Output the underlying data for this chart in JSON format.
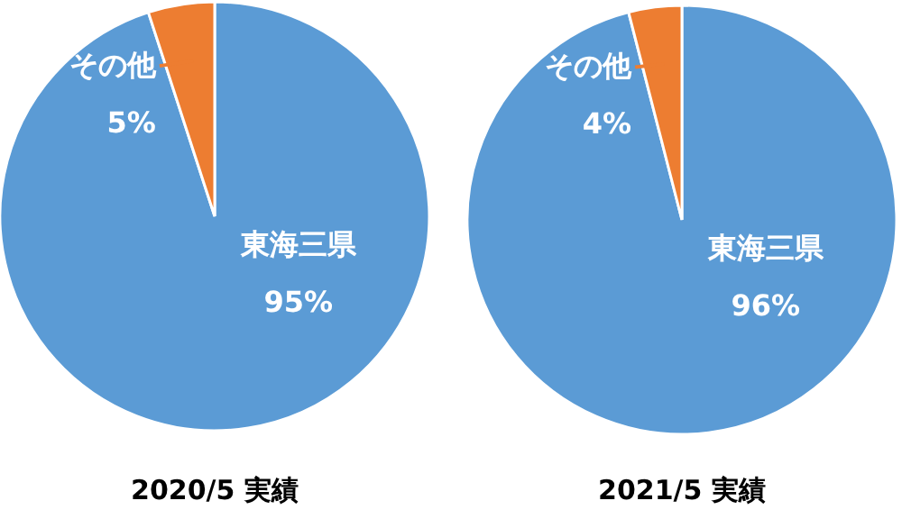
{
  "chart_data": [
    {
      "type": "pie",
      "title": "2020/5 実績",
      "categories": [
        "東海三県",
        "その他"
      ],
      "values": [
        95,
        5
      ],
      "colors": [
        "#5b9bd5",
        "#ed7d31"
      ],
      "value_labels": [
        "95%",
        "5%"
      ]
    },
    {
      "type": "pie",
      "title": "2021/5 実績",
      "categories": [
        "東海三県",
        "その他"
      ],
      "values": [
        96,
        4
      ],
      "colors": [
        "#5b9bd5",
        "#ed7d31"
      ],
      "value_labels": [
        "96%",
        "4%"
      ]
    }
  ]
}
